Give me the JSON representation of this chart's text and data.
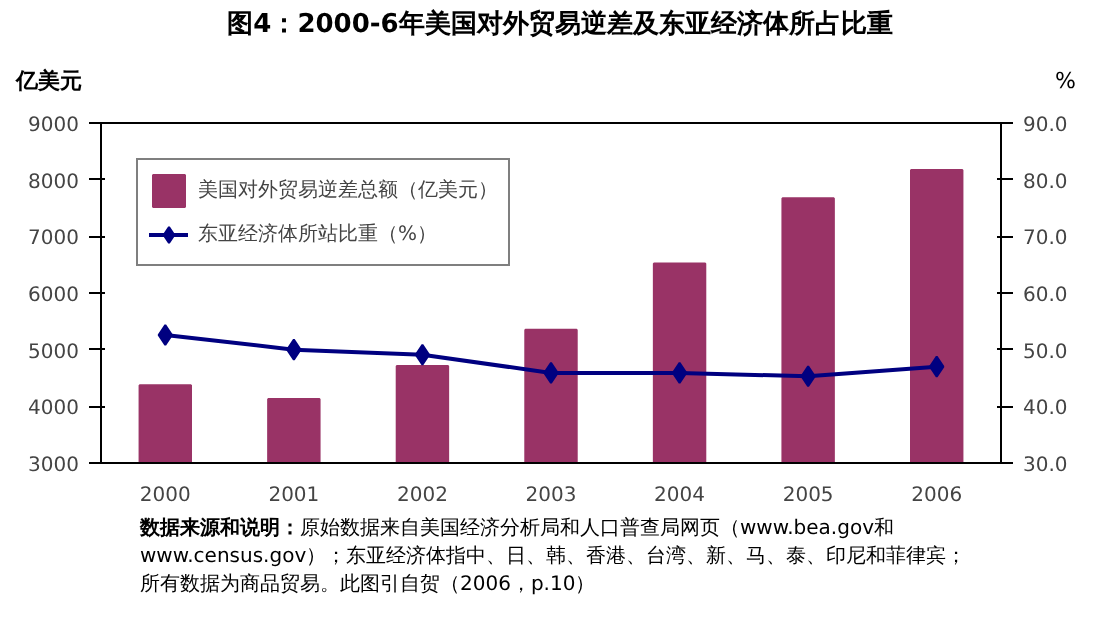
{
  "chart_data": {
    "type": "bar",
    "title": "图4：2000-6年美国对外贸易逆差及东亚经济体所占比重",
    "ylabel": "亿美元",
    "y2label": "%",
    "categories": [
      "2000",
      "2001",
      "2002",
      "2003",
      "2004",
      "2005",
      "2006"
    ],
    "series": [
      {
        "name": "美国对外贸易逆差总额（亿美元）",
        "color": "#993366",
        "values": [
          4370,
          4130,
          4710,
          5350,
          6520,
          7670,
          8170
        ]
      },
      {
        "name": "东亚经济体所站比重（%）",
        "type": "line",
        "axis": "y2",
        "color": "#000080",
        "marker": "diamond",
        "values": [
          52.6,
          50.0,
          49.1,
          45.9,
          45.9,
          45.3,
          47.0
        ]
      }
    ],
    "ylim": [
      3000,
      9000
    ],
    "yticks": [
      3000,
      4000,
      5000,
      6000,
      7000,
      8000,
      9000
    ],
    "y2lim": [
      30,
      90
    ],
    "y2ticks": [
      {
        "value": 30,
        "label": "30.0"
      },
      {
        "value": 40,
        "label": "40.0"
      },
      {
        "value": 50,
        "label": "50.0"
      },
      {
        "value": 60,
        "label": "60.0"
      },
      {
        "value": 70,
        "label": "70.0"
      },
      {
        "value": 80,
        "label": "80.0"
      },
      {
        "value": 90,
        "label": "90.0"
      }
    ],
    "grid": false,
    "legend": "top left",
    "annotations": [
      "数据来源和说明：",
      "原始数据来自美国经济分析局和人口普查局网页（www.bea.gov和www.census.gov）；东亚经济体指中、日、韩、香港、台湾、新、马、泰、印尼和菲律宾；所有数据为商品贸易。此图引自贺（2006，p.10）"
    ]
  }
}
